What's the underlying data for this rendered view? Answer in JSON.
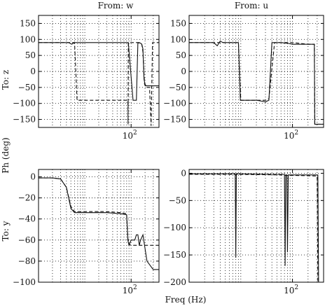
{
  "figure": {
    "col_titles": [
      "From: w",
      "From: u"
    ],
    "row_titles": [
      "To: z",
      "To: y"
    ],
    "ylabel": "Ph (deg)",
    "xlabel": "Freq (Hz)"
  },
  "chart_data": [
    {
      "type": "line",
      "panel": "From: w / To: z",
      "xscale": "log",
      "xlim": [
        1,
        400
      ],
      "ylim": [
        -175,
        175
      ],
      "yticks": [
        150,
        100,
        50,
        0,
        -50,
        -100,
        -150
      ],
      "xticks": [
        {
          "value": 100,
          "label": "10",
          "sup": "2"
        }
      ],
      "grid": true,
      "series": [
        {
          "style": "solid",
          "x": [
            1,
            4.5,
            5.2,
            6,
            6.6,
            50,
            80,
            85,
            86,
            87,
            110,
            130,
            140,
            150,
            160,
            170,
            180,
            190,
            200,
            210,
            400
          ],
          "y": [
            90,
            90,
            85,
            90,
            90,
            90,
            90,
            90,
            90,
            90,
            -90,
            -90,
            90,
            90,
            88,
            85,
            70,
            -25,
            -40,
            -45,
            -45
          ]
        },
        {
          "style": "dashed",
          "x": [
            1,
            6,
            6.8,
            85,
            86,
            87,
            140,
            170,
            180,
            195,
            210,
            250,
            270,
            290,
            400
          ],
          "y": [
            90,
            90,
            -90,
            -90,
            -165,
            90,
            90,
            85,
            60,
            -40,
            -50,
            -50,
            -170,
            90,
            90
          ]
        }
      ]
    },
    {
      "type": "line",
      "panel": "From: u / To: z",
      "xscale": "log",
      "xlim": [
        1,
        400
      ],
      "ylim": [
        -175,
        175
      ],
      "yticks": [
        150,
        100,
        50,
        0,
        -50,
        -100,
        -150
      ],
      "xticks": [
        {
          "value": 100,
          "label": "10",
          "sup": "2"
        }
      ],
      "grid": true,
      "series": [
        {
          "style": "solid",
          "x": [
            1,
            3,
            3.5,
            4,
            4.5,
            9,
            9.8,
            20,
            30,
            35,
            40,
            45,
            60,
            80,
            100,
            200,
            265,
            270,
            400
          ],
          "y": [
            90,
            90,
            80,
            95,
            90,
            90,
            -90,
            -90,
            -95,
            -90,
            90,
            90,
            90,
            88,
            85,
            85,
            85,
            -165,
            -165
          ]
        },
        {
          "style": "dashed",
          "x": [
            1,
            9,
            10,
            30,
            35,
            45,
            100,
            200,
            265,
            270,
            400
          ],
          "y": [
            90,
            90,
            -90,
            -90,
            -85,
            90,
            90,
            85,
            85,
            -165,
            -165
          ]
        }
      ]
    },
    {
      "type": "line",
      "panel": "From: w / To: y",
      "xscale": "log",
      "xlim": [
        1,
        400
      ],
      "ylim": [
        -100,
        7
      ],
      "yticks": [
        0,
        -20,
        -40,
        -60,
        -80,
        -100
      ],
      "xticks": [
        {
          "value": 100,
          "label": "10",
          "sup": "2"
        }
      ],
      "grid": true,
      "series": [
        {
          "style": "solid",
          "x": [
            1,
            2,
            3,
            4,
            5,
            6,
            30,
            60,
            80,
            85,
            90,
            100,
            120,
            130,
            140,
            145,
            150,
            160,
            180,
            220,
            300,
            400
          ],
          "y": [
            -1,
            -1,
            -2,
            -10,
            -30,
            -34,
            -34,
            -35,
            -36,
            -60,
            -65,
            -60,
            -60,
            -55,
            -55,
            -60,
            -65,
            -60,
            -55,
            -80,
            -88,
            -88
          ]
        },
        {
          "style": "dashed",
          "x": [
            1,
            2,
            3,
            4,
            5,
            6,
            30,
            60,
            80,
            85,
            90,
            100,
            400
          ],
          "y": [
            -1,
            -1,
            -2,
            -10,
            -28,
            -33,
            -33,
            -34,
            -35,
            -58,
            -64,
            -65,
            -65
          ]
        }
      ]
    },
    {
      "type": "line",
      "panel": "From: u / To: y",
      "xscale": "log",
      "xlim": [
        1,
        400
      ],
      "ylim": [
        -200,
        7
      ],
      "yticks": [
        0,
        -50,
        -100,
        -150,
        -200
      ],
      "xticks": [
        {
          "value": 100,
          "label": "10",
          "sup": "2"
        }
      ],
      "grid": true,
      "series": [
        {
          "style": "solid",
          "x": [
            1,
            7.8,
            8,
            8.2,
            60,
            70,
            72,
            74,
            76,
            78,
            80,
            83,
            120,
            310,
            320,
            400
          ],
          "y": [
            -1,
            -1,
            -155,
            -1,
            -2,
            -2,
            -170,
            -3,
            -3,
            -3,
            -145,
            -3,
            -3,
            -3,
            -200,
            -200
          ]
        },
        {
          "style": "dashed",
          "x": [
            1,
            8,
            60,
            75,
            80,
            120,
            300,
            310,
            400
          ],
          "y": [
            -2,
            -2,
            -3,
            -4,
            -4,
            -4,
            -5,
            -200,
            -200
          ]
        }
      ]
    }
  ]
}
